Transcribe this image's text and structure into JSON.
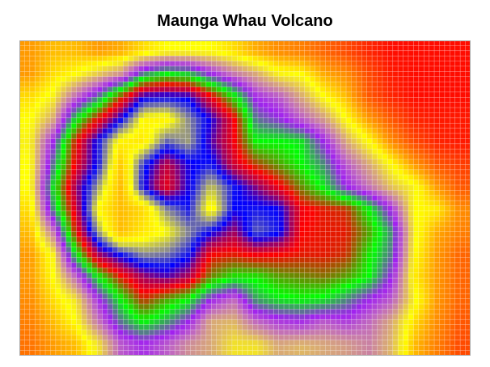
{
  "chart_data": {
    "type": "heatmap",
    "title": "Maunga Whau Volcano",
    "xlabel": "",
    "ylabel": "",
    "grid": true,
    "cells_x": 87,
    "cells_y": 61,
    "note_z": "coarse elevation estimates (rows top to bottom, columns left to right)",
    "z": [
      [
        106,
        108,
        108,
        106,
        107,
        110,
        112,
        112,
        112,
        110,
        107,
        105,
        104,
        102,
        100,
        97,
        95,
        95,
        95,
        95
      ],
      [
        106,
        110,
        112,
        116,
        120,
        133,
        138,
        136,
        128,
        122,
        118,
        113,
        112,
        107,
        105,
        100,
        96,
        95,
        95,
        95
      ],
      [
        110,
        113,
        123,
        132,
        146,
        160,
        161,
        160,
        150,
        139,
        127,
        124,
        118,
        112,
        108,
        101,
        97,
        95,
        95,
        95
      ],
      [
        112,
        118,
        137,
        149,
        161,
        174,
        175,
        167,
        160,
        150,
        132,
        129,
        124,
        119,
        112,
        106,
        101,
        97,
        96,
        96
      ],
      [
        113,
        128,
        148,
        162,
        175,
        176,
        165,
        168,
        158,
        150,
        138,
        138,
        137,
        128,
        118,
        112,
        105,
        100,
        97,
        96
      ],
      [
        112,
        132,
        150,
        162,
        180,
        163,
        153,
        160,
        162,
        152,
        146,
        142,
        138,
        133,
        124,
        118,
        112,
        106,
        101,
        99
      ],
      [
        112,
        137,
        155,
        168,
        182,
        161,
        150,
        160,
        170,
        162,
        156,
        150,
        143,
        137,
        128,
        122,
        116,
        113,
        106,
        101
      ],
      [
        110,
        133,
        152,
        174,
        182,
        178,
        167,
        162,
        175,
        161,
        162,
        161,
        150,
        148,
        147,
        138,
        127,
        112,
        111,
        105
      ],
      [
        108,
        122,
        148,
        168,
        182,
        176,
        173,
        167,
        161,
        155,
        165,
        162,
        149,
        148,
        148,
        142,
        133,
        113,
        107,
        104
      ],
      [
        106,
        113,
        137,
        155,
        162,
        167,
        166,
        162,
        149,
        148,
        150,
        149,
        148,
        148,
        147,
        139,
        132,
        112,
        106,
        102
      ],
      [
        106,
        112,
        123,
        138,
        148,
        155,
        158,
        154,
        143,
        139,
        139,
        142,
        143,
        144,
        142,
        138,
        128,
        111,
        106,
        102
      ],
      [
        105,
        110,
        114,
        127,
        138,
        147,
        142,
        138,
        128,
        123,
        134,
        137,
        138,
        137,
        133,
        128,
        124,
        113,
        106,
        102
      ],
      [
        104,
        108,
        112,
        122,
        132,
        138,
        134,
        128,
        118,
        117,
        123,
        126,
        127,
        124,
        126,
        123,
        118,
        110,
        105,
        101
      ],
      [
        103,
        106,
        108,
        114,
        124,
        127,
        124,
        120,
        118,
        114,
        114,
        118,
        117,
        118,
        119,
        121,
        117,
        108,
        104,
        100
      ]
    ],
    "palette": [
      {
        "value": 94,
        "color": "#FF0000"
      },
      {
        "value": 100,
        "color": "#FF4A00"
      },
      {
        "value": 106,
        "color": "#FF9A00"
      },
      {
        "value": 112,
        "color": "#FFFF00"
      },
      {
        "value": 118,
        "color": "#D8A878"
      },
      {
        "value": 123,
        "color": "#C068C0"
      },
      {
        "value": 128,
        "color": "#A020F0"
      },
      {
        "value": 133,
        "color": "#4A8A7A"
      },
      {
        "value": 138,
        "color": "#00FF00"
      },
      {
        "value": 143,
        "color": "#6A8A00"
      },
      {
        "value": 149,
        "color": "#FF0000"
      },
      {
        "value": 155,
        "color": "#A00060"
      },
      {
        "value": 161,
        "color": "#0000FF"
      },
      {
        "value": 167,
        "color": "#8A8A90"
      },
      {
        "value": 173,
        "color": "#FFFF00"
      },
      {
        "value": 185,
        "color": "#FFA500"
      },
      {
        "value": 195,
        "color": "#FF8C00"
      }
    ]
  }
}
